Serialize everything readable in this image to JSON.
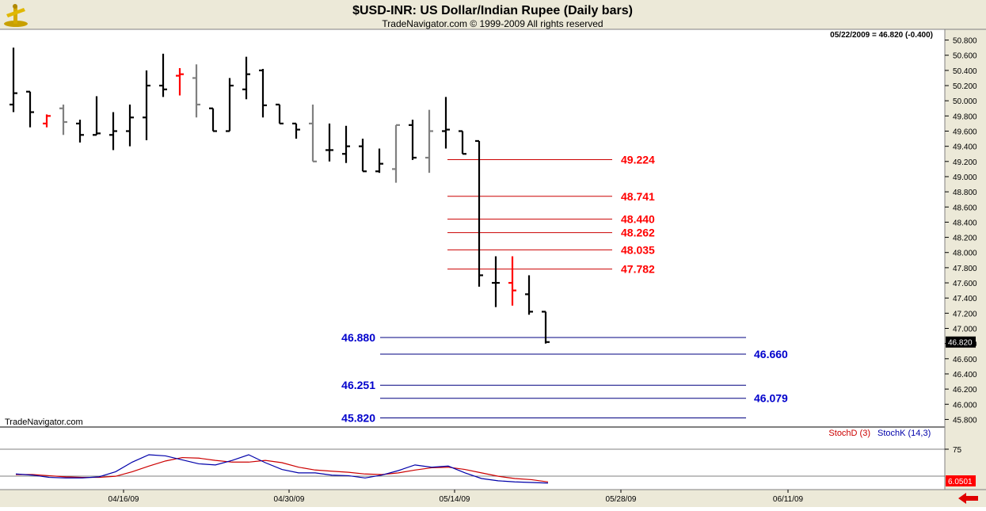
{
  "header": {
    "title": "$USD-INR:  US Dollar/Indian Rupee  (Daily bars)",
    "subtitle": "TradeNavigator.com © 1999-2009 All rights reserved",
    "readout": "05/22/2009 = 46.820 (-0.400)",
    "watermark": "TradeNavigator.com"
  },
  "chart_data": [
    {
      "type": "ohlc",
      "last_price_label": "46.820",
      "ylim": [
        45.7,
        50.9
      ],
      "y_ticks": [
        "50.800",
        "50.600",
        "50.400",
        "50.200",
        "50.000",
        "49.800",
        "49.600",
        "49.400",
        "49.200",
        "49.000",
        "48.800",
        "48.600",
        "48.400",
        "48.200",
        "48.000",
        "47.800",
        "47.600",
        "47.400",
        "47.200",
        "47.000",
        "46.800",
        "46.600",
        "46.400",
        "46.200",
        "46.000",
        "45.800"
      ],
      "x_ticks": [
        "04/16/09",
        "04/30/09",
        "05/14/09",
        "05/28/09",
        "06/11/09"
      ],
      "colors": {
        "up": "#000000",
        "down_red": "#ff0000",
        "neutral": "#808080",
        "red_level": "#cc0000",
        "blue_level": "#000080"
      },
      "bars": [
        {
          "o": 49.95,
          "h": 50.7,
          "l": 49.85,
          "c": 50.1,
          "col": "black"
        },
        {
          "o": 50.12,
          "h": 50.12,
          "l": 49.65,
          "c": 49.85,
          "col": "black"
        },
        {
          "o": 49.7,
          "h": 49.82,
          "l": 49.65,
          "c": 49.8,
          "col": "red"
        },
        {
          "o": 49.9,
          "h": 49.95,
          "l": 49.55,
          "c": 49.72,
          "col": "gray"
        },
        {
          "o": 49.7,
          "h": 49.75,
          "l": 49.45,
          "c": 49.55,
          "col": "black"
        },
        {
          "o": 49.55,
          "h": 50.06,
          "l": 49.55,
          "c": 49.57,
          "col": "black"
        },
        {
          "o": 49.55,
          "h": 49.85,
          "l": 49.35,
          "c": 49.6,
          "col": "black"
        },
        {
          "o": 49.6,
          "h": 49.95,
          "l": 49.4,
          "c": 49.78,
          "col": "black"
        },
        {
          "o": 49.78,
          "h": 50.4,
          "l": 49.48,
          "c": 50.2,
          "col": "black"
        },
        {
          "o": 50.2,
          "h": 50.62,
          "l": 50.05,
          "c": 50.15,
          "col": "black"
        },
        {
          "o": 50.33,
          "h": 50.43,
          "l": 50.07,
          "c": 50.35,
          "col": "red"
        },
        {
          "o": 50.3,
          "h": 50.48,
          "l": 49.78,
          "c": 49.95,
          "col": "gray"
        },
        {
          "o": 49.9,
          "h": 49.9,
          "l": 49.6,
          "c": 49.6,
          "col": "black"
        },
        {
          "o": 49.6,
          "h": 50.3,
          "l": 49.6,
          "c": 50.2,
          "col": "black"
        },
        {
          "o": 50.15,
          "h": 50.58,
          "l": 50.02,
          "c": 50.35,
          "col": "black"
        },
        {
          "o": 50.4,
          "h": 50.42,
          "l": 49.78,
          "c": 49.94,
          "col": "black"
        },
        {
          "o": 49.95,
          "h": 49.95,
          "l": 49.7,
          "c": 49.7,
          "col": "black"
        },
        {
          "o": 49.7,
          "h": 49.7,
          "l": 49.5,
          "c": 49.62,
          "col": "black"
        },
        {
          "o": 49.7,
          "h": 49.95,
          "l": 49.2,
          "c": 49.2,
          "col": "gray"
        },
        {
          "o": 49.35,
          "h": 49.7,
          "l": 49.2,
          "c": 49.35,
          "col": "black"
        },
        {
          "o": 49.3,
          "h": 49.67,
          "l": 49.18,
          "c": 49.4,
          "col": "black"
        },
        {
          "o": 49.4,
          "h": 49.5,
          "l": 49.07,
          "c": 49.07,
          "col": "black"
        },
        {
          "o": 49.07,
          "h": 49.37,
          "l": 49.05,
          "c": 49.17,
          "col": "black"
        },
        {
          "o": 49.1,
          "h": 49.68,
          "l": 48.92,
          "c": 49.68,
          "col": "gray"
        },
        {
          "o": 49.68,
          "h": 49.75,
          "l": 49.22,
          "c": 49.25,
          "col": "black"
        },
        {
          "o": 49.25,
          "h": 49.88,
          "l": 49.05,
          "c": 49.6,
          "col": "gray"
        },
        {
          "o": 49.6,
          "h": 50.05,
          "l": 49.37,
          "c": 49.62,
          "col": "black"
        },
        {
          "o": 49.6,
          "h": 49.6,
          "l": 49.3,
          "c": 49.3,
          "col": "black"
        },
        {
          "o": 49.47,
          "h": 49.47,
          "l": 47.55,
          "c": 47.7,
          "col": "black"
        },
        {
          "o": 47.6,
          "h": 47.95,
          "l": 47.28,
          "c": 47.6,
          "col": "black"
        },
        {
          "o": 47.6,
          "h": 47.95,
          "l": 47.3,
          "c": 47.5,
          "col": "red"
        },
        {
          "o": 47.45,
          "h": 47.7,
          "l": 47.18,
          "c": 47.22,
          "col": "black"
        },
        {
          "o": 47.22,
          "h": 47.22,
          "l": 46.8,
          "c": 46.82,
          "col": "black"
        }
      ],
      "levels": [
        {
          "value": 49.224,
          "label": "49.224",
          "color": "red"
        },
        {
          "value": 48.741,
          "label": "48.741",
          "color": "red"
        },
        {
          "value": 48.44,
          "label": "48.440",
          "color": "red"
        },
        {
          "value": 48.262,
          "label": "48.262",
          "color": "red"
        },
        {
          "value": 48.035,
          "label": "48.035",
          "color": "red"
        },
        {
          "value": 47.782,
          "label": "47.782",
          "color": "red"
        },
        {
          "value": 46.88,
          "label": "46.880",
          "color": "blue",
          "label_side": "left"
        },
        {
          "value": 46.66,
          "label": "46.660",
          "color": "blue",
          "label_side": "right"
        },
        {
          "value": 46.251,
          "label": "46.251",
          "color": "blue",
          "label_side": "left"
        },
        {
          "value": 46.079,
          "label": "46.079",
          "color": "blue",
          "label_side": "right"
        },
        {
          "value": 45.82,
          "label": "45.820",
          "color": "blue",
          "label_side": "left"
        }
      ]
    },
    {
      "type": "line",
      "legend": [
        "StochD (3)",
        "StochK (14,3)"
      ],
      "ylim": [
        0,
        100
      ],
      "y_ticks": [
        "75"
      ],
      "reference_lines": [
        75,
        25
      ],
      "last_value_label": "6.0501",
      "series": [
        {
          "name": "StochD (3)",
          "color": "#cc0000",
          "values": [
            21,
            21,
            19,
            17,
            16,
            16,
            18,
            26,
            36,
            45,
            51,
            50,
            46,
            43,
            43,
            46,
            42,
            34,
            29,
            27,
            25,
            22,
            21,
            24,
            29,
            33,
            34,
            30,
            24,
            18,
            14,
            12,
            8
          ]
        },
        {
          "name": "StochK (14,3)",
          "color": "#0000aa",
          "values": [
            22,
            20,
            16,
            15,
            15,
            17,
            26,
            43,
            56,
            54,
            47,
            40,
            38,
            46,
            56,
            42,
            30,
            24,
            24,
            20,
            19,
            15,
            20,
            28,
            38,
            34,
            36,
            24,
            14,
            10,
            8,
            7,
            6
          ]
        }
      ]
    }
  ]
}
